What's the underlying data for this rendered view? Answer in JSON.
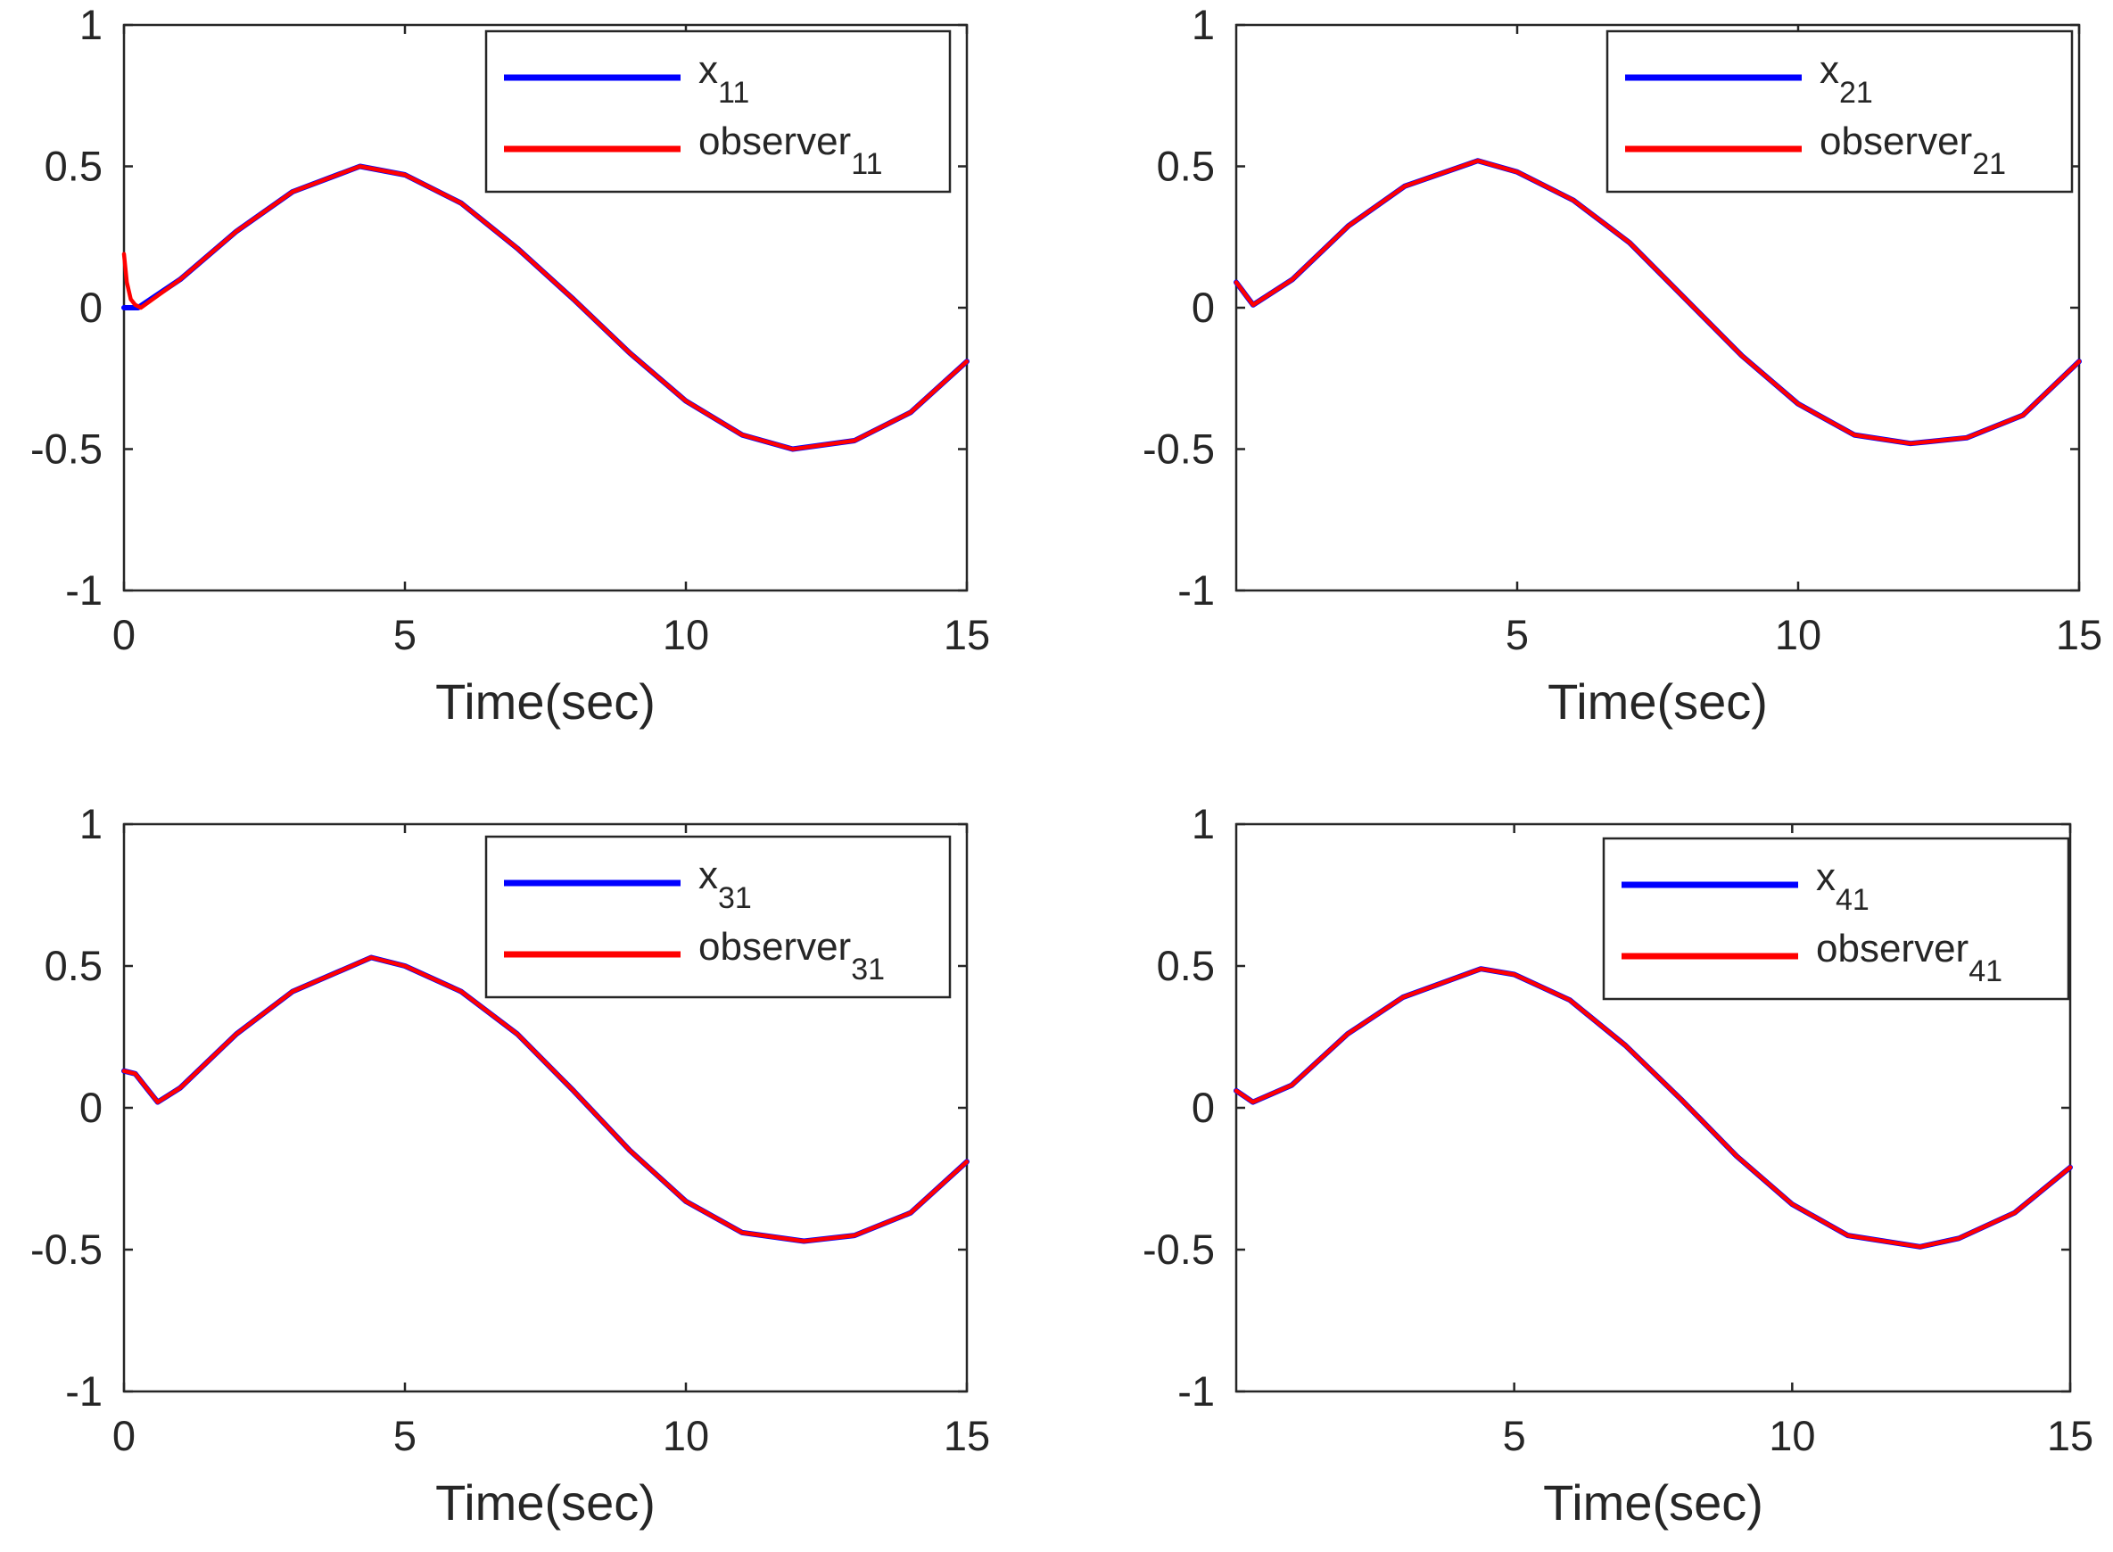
{
  "figure": {
    "colors": {
      "state": "#0000ff",
      "observer": "#ff0000",
      "axes": "#262626",
      "background": "#ffffff"
    }
  },
  "chart_data": [
    {
      "type": "line",
      "position": "top-left",
      "xlabel": "Time(sec)",
      "ylabel": "",
      "xlim": [
        0,
        15
      ],
      "ylim": [
        -1,
        1
      ],
      "xticks": [
        "0",
        "5",
        "10",
        "15"
      ],
      "yticks": [
        "-1",
        "-0.5",
        "0",
        "0.5",
        "1"
      ],
      "legend": {
        "placement": "top-right",
        "entries": [
          {
            "base": "x",
            "sub": "11",
            "color": "#0000ff"
          },
          {
            "base": "observer",
            "sub": "11",
            "color": "#ff0000"
          }
        ]
      },
      "series": [
        {
          "name": "x11",
          "color": "#0000ff",
          "x": [
            0,
            0.25,
            1,
            2,
            3,
            4.2,
            5,
            6,
            7,
            8,
            9,
            10,
            11,
            11.9,
            13,
            14,
            15
          ],
          "values": [
            0.0,
            0.0,
            0.1,
            0.27,
            0.41,
            0.5,
            0.47,
            0.37,
            0.21,
            0.03,
            -0.16,
            -0.33,
            -0.45,
            -0.5,
            -0.47,
            -0.37,
            -0.19
          ]
        },
        {
          "name": "observer11",
          "color": "#ff0000",
          "x": [
            0,
            0.05,
            0.12,
            0.2,
            0.3,
            1,
            2,
            3,
            4.2,
            5,
            6,
            7,
            8,
            9,
            10,
            11,
            11.9,
            13,
            14,
            15
          ],
          "values": [
            0.19,
            0.09,
            0.03,
            0.01,
            0.0,
            0.1,
            0.27,
            0.41,
            0.5,
            0.47,
            0.37,
            0.21,
            0.03,
            -0.16,
            -0.33,
            -0.45,
            -0.5,
            -0.47,
            -0.37,
            -0.19
          ]
        }
      ]
    },
    {
      "type": "line",
      "position": "top-right",
      "xlabel": "Time(sec)",
      "ylabel": "",
      "xlim": [
        0,
        15
      ],
      "ylim": [
        -1,
        1
      ],
      "xticks": [
        "5",
        "10",
        "15"
      ],
      "yticks": [
        "-1",
        "-0.5",
        "0",
        "0.5",
        "1"
      ],
      "legend": {
        "placement": "top-right",
        "entries": [
          {
            "base": "x",
            "sub": "21",
            "color": "#0000ff"
          },
          {
            "base": "observer",
            "sub": "21",
            "color": "#ff0000"
          }
        ]
      },
      "series": [
        {
          "name": "x21",
          "color": "#0000ff",
          "x": [
            0,
            0.3,
            1,
            2,
            3,
            4.3,
            5,
            6,
            7,
            8,
            9,
            10,
            11,
            12,
            13,
            14,
            15
          ],
          "values": [
            0.09,
            0.01,
            0.1,
            0.29,
            0.43,
            0.52,
            0.48,
            0.38,
            0.23,
            0.03,
            -0.17,
            -0.34,
            -0.45,
            -0.48,
            -0.46,
            -0.38,
            -0.19
          ]
        },
        {
          "name": "observer21",
          "color": "#ff0000",
          "x": [
            0,
            0.3,
            1,
            2,
            3,
            4.3,
            5,
            6,
            7,
            8,
            9,
            10,
            11,
            12,
            13,
            14,
            15
          ],
          "values": [
            0.09,
            0.01,
            0.1,
            0.29,
            0.43,
            0.52,
            0.48,
            0.38,
            0.23,
            0.03,
            -0.17,
            -0.34,
            -0.45,
            -0.48,
            -0.46,
            -0.38,
            -0.19
          ]
        }
      ]
    },
    {
      "type": "line",
      "position": "bottom-left",
      "xlabel": "Time(sec)",
      "ylabel": "",
      "xlim": [
        0,
        15
      ],
      "ylim": [
        -1,
        1
      ],
      "xticks": [
        "0",
        "5",
        "10",
        "15"
      ],
      "yticks": [
        "-1",
        "-0.5",
        "0",
        "0.5",
        "1"
      ],
      "legend": {
        "placement": "top-right",
        "entries": [
          {
            "base": "x",
            "sub": "31",
            "color": "#0000ff"
          },
          {
            "base": "observer",
            "sub": "31",
            "color": "#ff0000"
          }
        ]
      },
      "series": [
        {
          "name": "x31",
          "color": "#0000ff",
          "x": [
            0,
            0.2,
            0.4,
            0.6,
            1,
            2,
            3,
            4.4,
            5,
            6,
            7,
            8,
            9,
            10,
            11,
            12.1,
            13,
            14,
            15
          ],
          "values": [
            0.13,
            0.12,
            0.07,
            0.02,
            0.07,
            0.26,
            0.41,
            0.53,
            0.5,
            0.41,
            0.26,
            0.06,
            -0.15,
            -0.33,
            -0.44,
            -0.47,
            -0.45,
            -0.37,
            -0.19
          ]
        },
        {
          "name": "observer31",
          "color": "#ff0000",
          "x": [
            0,
            0.2,
            0.4,
            0.6,
            1,
            2,
            3,
            4.4,
            5,
            6,
            7,
            8,
            9,
            10,
            11,
            12.1,
            13,
            14,
            15
          ],
          "values": [
            0.13,
            0.12,
            0.07,
            0.02,
            0.07,
            0.26,
            0.41,
            0.53,
            0.5,
            0.41,
            0.26,
            0.06,
            -0.15,
            -0.33,
            -0.44,
            -0.47,
            -0.45,
            -0.37,
            -0.19
          ]
        }
      ]
    },
    {
      "type": "line",
      "position": "bottom-right",
      "xlabel": "Time(sec)",
      "ylabel": "",
      "xlim": [
        0,
        15
      ],
      "ylim": [
        -1,
        1
      ],
      "xticks": [
        "5",
        "10",
        "15"
      ],
      "yticks": [
        "-1",
        "-0.5",
        "0",
        "0.5",
        "1"
      ],
      "legend": {
        "placement": "top-right",
        "entries": [
          {
            "base": "x",
            "sub": "41",
            "color": "#0000ff"
          },
          {
            "base": "observer",
            "sub": "41",
            "color": "#ff0000"
          }
        ]
      },
      "series": [
        {
          "name": "x41",
          "color": "#0000ff",
          "x": [
            0,
            0.3,
            1,
            2,
            3,
            4.4,
            5,
            6,
            7,
            8,
            9,
            10,
            11,
            12.3,
            13,
            14,
            15
          ],
          "values": [
            0.06,
            0.02,
            0.08,
            0.26,
            0.39,
            0.49,
            0.47,
            0.38,
            0.22,
            0.03,
            -0.17,
            -0.34,
            -0.45,
            -0.49,
            -0.46,
            -0.37,
            -0.21
          ]
        },
        {
          "name": "observer41",
          "color": "#ff0000",
          "x": [
            0,
            0.3,
            1,
            2,
            3,
            4.4,
            5,
            6,
            7,
            8,
            9,
            10,
            11,
            12.3,
            13,
            14,
            15
          ],
          "values": [
            0.06,
            0.02,
            0.08,
            0.26,
            0.39,
            0.49,
            0.47,
            0.38,
            0.22,
            0.03,
            -0.17,
            -0.34,
            -0.45,
            -0.49,
            -0.46,
            -0.37,
            -0.21
          ]
        }
      ]
    }
  ]
}
